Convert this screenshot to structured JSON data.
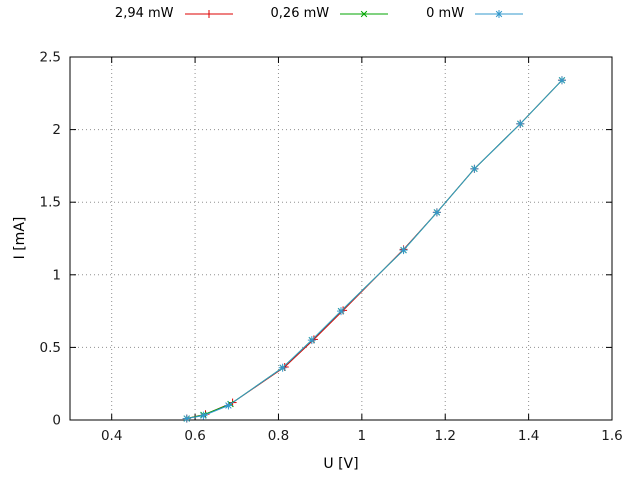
{
  "legend": {
    "position": "top-center"
  },
  "chart_data": {
    "type": "line",
    "title": "",
    "xlabel": "U [V]",
    "ylabel": "I [mA]",
    "xlim": [
      0.3,
      1.6
    ],
    "ylim": [
      0,
      2.5
    ],
    "grid": true,
    "legend_position": "top-center",
    "xticks": {
      "values": [
        0.4,
        0.6,
        0.8,
        1.0,
        1.2,
        1.4,
        1.6
      ],
      "labels": [
        "0.4",
        "0.6",
        "0.8",
        "1",
        "1.2",
        "1.4",
        "1.6"
      ]
    },
    "yticks": {
      "values": [
        0,
        0.5,
        1.0,
        1.5,
        2.0,
        2.5
      ],
      "labels": [
        "0",
        "0.5",
        "1",
        "1.5",
        "2",
        "2.5"
      ]
    },
    "series": [
      {
        "name": "2,94 mW",
        "color": "#dd0000",
        "marker": "plus",
        "points": [
          [
            0.58,
            0.01
          ],
          [
            0.625,
            0.04
          ],
          [
            0.69,
            0.12
          ],
          [
            0.815,
            0.365
          ],
          [
            0.885,
            0.555
          ],
          [
            0.955,
            0.755
          ],
          [
            1.1,
            1.175
          ],
          [
            1.18,
            1.43
          ],
          [
            1.27,
            1.73
          ],
          [
            1.38,
            2.04
          ],
          [
            1.48,
            2.34
          ]
        ]
      },
      {
        "name": "0,26 mW",
        "color": "#00a500",
        "marker": "x",
        "points": [
          [
            0.58,
            0.01
          ],
          [
            0.62,
            0.035
          ],
          [
            0.685,
            0.11
          ],
          [
            0.81,
            0.36
          ],
          [
            0.88,
            0.55
          ],
          [
            0.95,
            0.75
          ],
          [
            1.1,
            1.17
          ],
          [
            1.18,
            1.43
          ],
          [
            1.27,
            1.73
          ],
          [
            1.38,
            2.04
          ],
          [
            1.48,
            2.34
          ]
        ]
      },
      {
        "name": "0 mW",
        "color": "#3399cc",
        "marker": "asterisk",
        "points": [
          [
            0.58,
            0.01
          ],
          [
            0.62,
            0.03
          ],
          [
            0.68,
            0.1
          ],
          [
            0.81,
            0.36
          ],
          [
            0.88,
            0.55
          ],
          [
            0.95,
            0.75
          ],
          [
            1.1,
            1.17
          ],
          [
            1.18,
            1.43
          ],
          [
            1.27,
            1.73
          ],
          [
            1.38,
            2.04
          ],
          [
            1.48,
            2.34
          ]
        ]
      }
    ]
  },
  "style_colors": {
    "grid": "#909090",
    "border": "#000000",
    "tick_text": "#1a1a1a"
  }
}
